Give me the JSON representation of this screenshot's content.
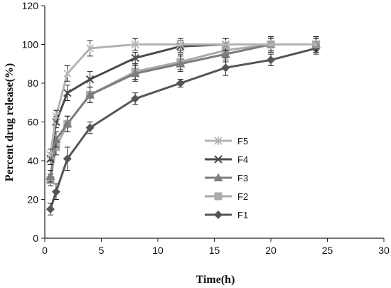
{
  "chart_data": {
    "type": "line",
    "title": "",
    "xlabel": "Time(h)",
    "ylabel": "Percent drug release(%)",
    "xlim": [
      0,
      30
    ],
    "ylim": [
      0,
      120
    ],
    "xticks": [
      0,
      5,
      10,
      15,
      20,
      25,
      30
    ],
    "yticks": [
      0,
      20,
      40,
      60,
      80,
      100,
      120
    ],
    "x": [
      0.5,
      1,
      2,
      4,
      8,
      12,
      16,
      20,
      24
    ],
    "grid": false,
    "legend_position": "center",
    "series": [
      {
        "name": "F5",
        "color": "#b4b4b4",
        "marker": "asterisk",
        "values": [
          43,
          63,
          85,
          98,
          100,
          100,
          100,
          100,
          100
        ],
        "errors": [
          3,
          3,
          4,
          4,
          3,
          3,
          3,
          3,
          3
        ]
      },
      {
        "name": "F4",
        "color": "#4a4a4a",
        "marker": "x",
        "values": [
          41,
          60,
          75,
          82,
          93,
          99,
          100,
          100,
          100
        ],
        "errors": [
          3,
          3,
          4,
          4,
          3,
          3,
          3,
          4,
          4
        ]
      },
      {
        "name": "F3",
        "color": "#7d7d7d",
        "marker": "triangle",
        "values": [
          32,
          51,
          59,
          74,
          85,
          90,
          95,
          100,
          100
        ],
        "errors": [
          3,
          4,
          4,
          4,
          4,
          4,
          4,
          4,
          4
        ]
      },
      {
        "name": "F2",
        "color": "#aaaaaa",
        "marker": "square",
        "values": [
          30,
          47,
          59,
          74,
          86,
          91,
          97,
          100,
          100
        ],
        "errors": [
          3,
          4,
          4,
          4,
          4,
          4,
          4,
          4,
          4
        ]
      },
      {
        "name": "F1",
        "color": "#555555",
        "marker": "diamond",
        "values": [
          15,
          24,
          41,
          57,
          72,
          80,
          88,
          92,
          98
        ],
        "errors": [
          3,
          4,
          6,
          3,
          3,
          2,
          4,
          3,
          3
        ]
      }
    ]
  }
}
